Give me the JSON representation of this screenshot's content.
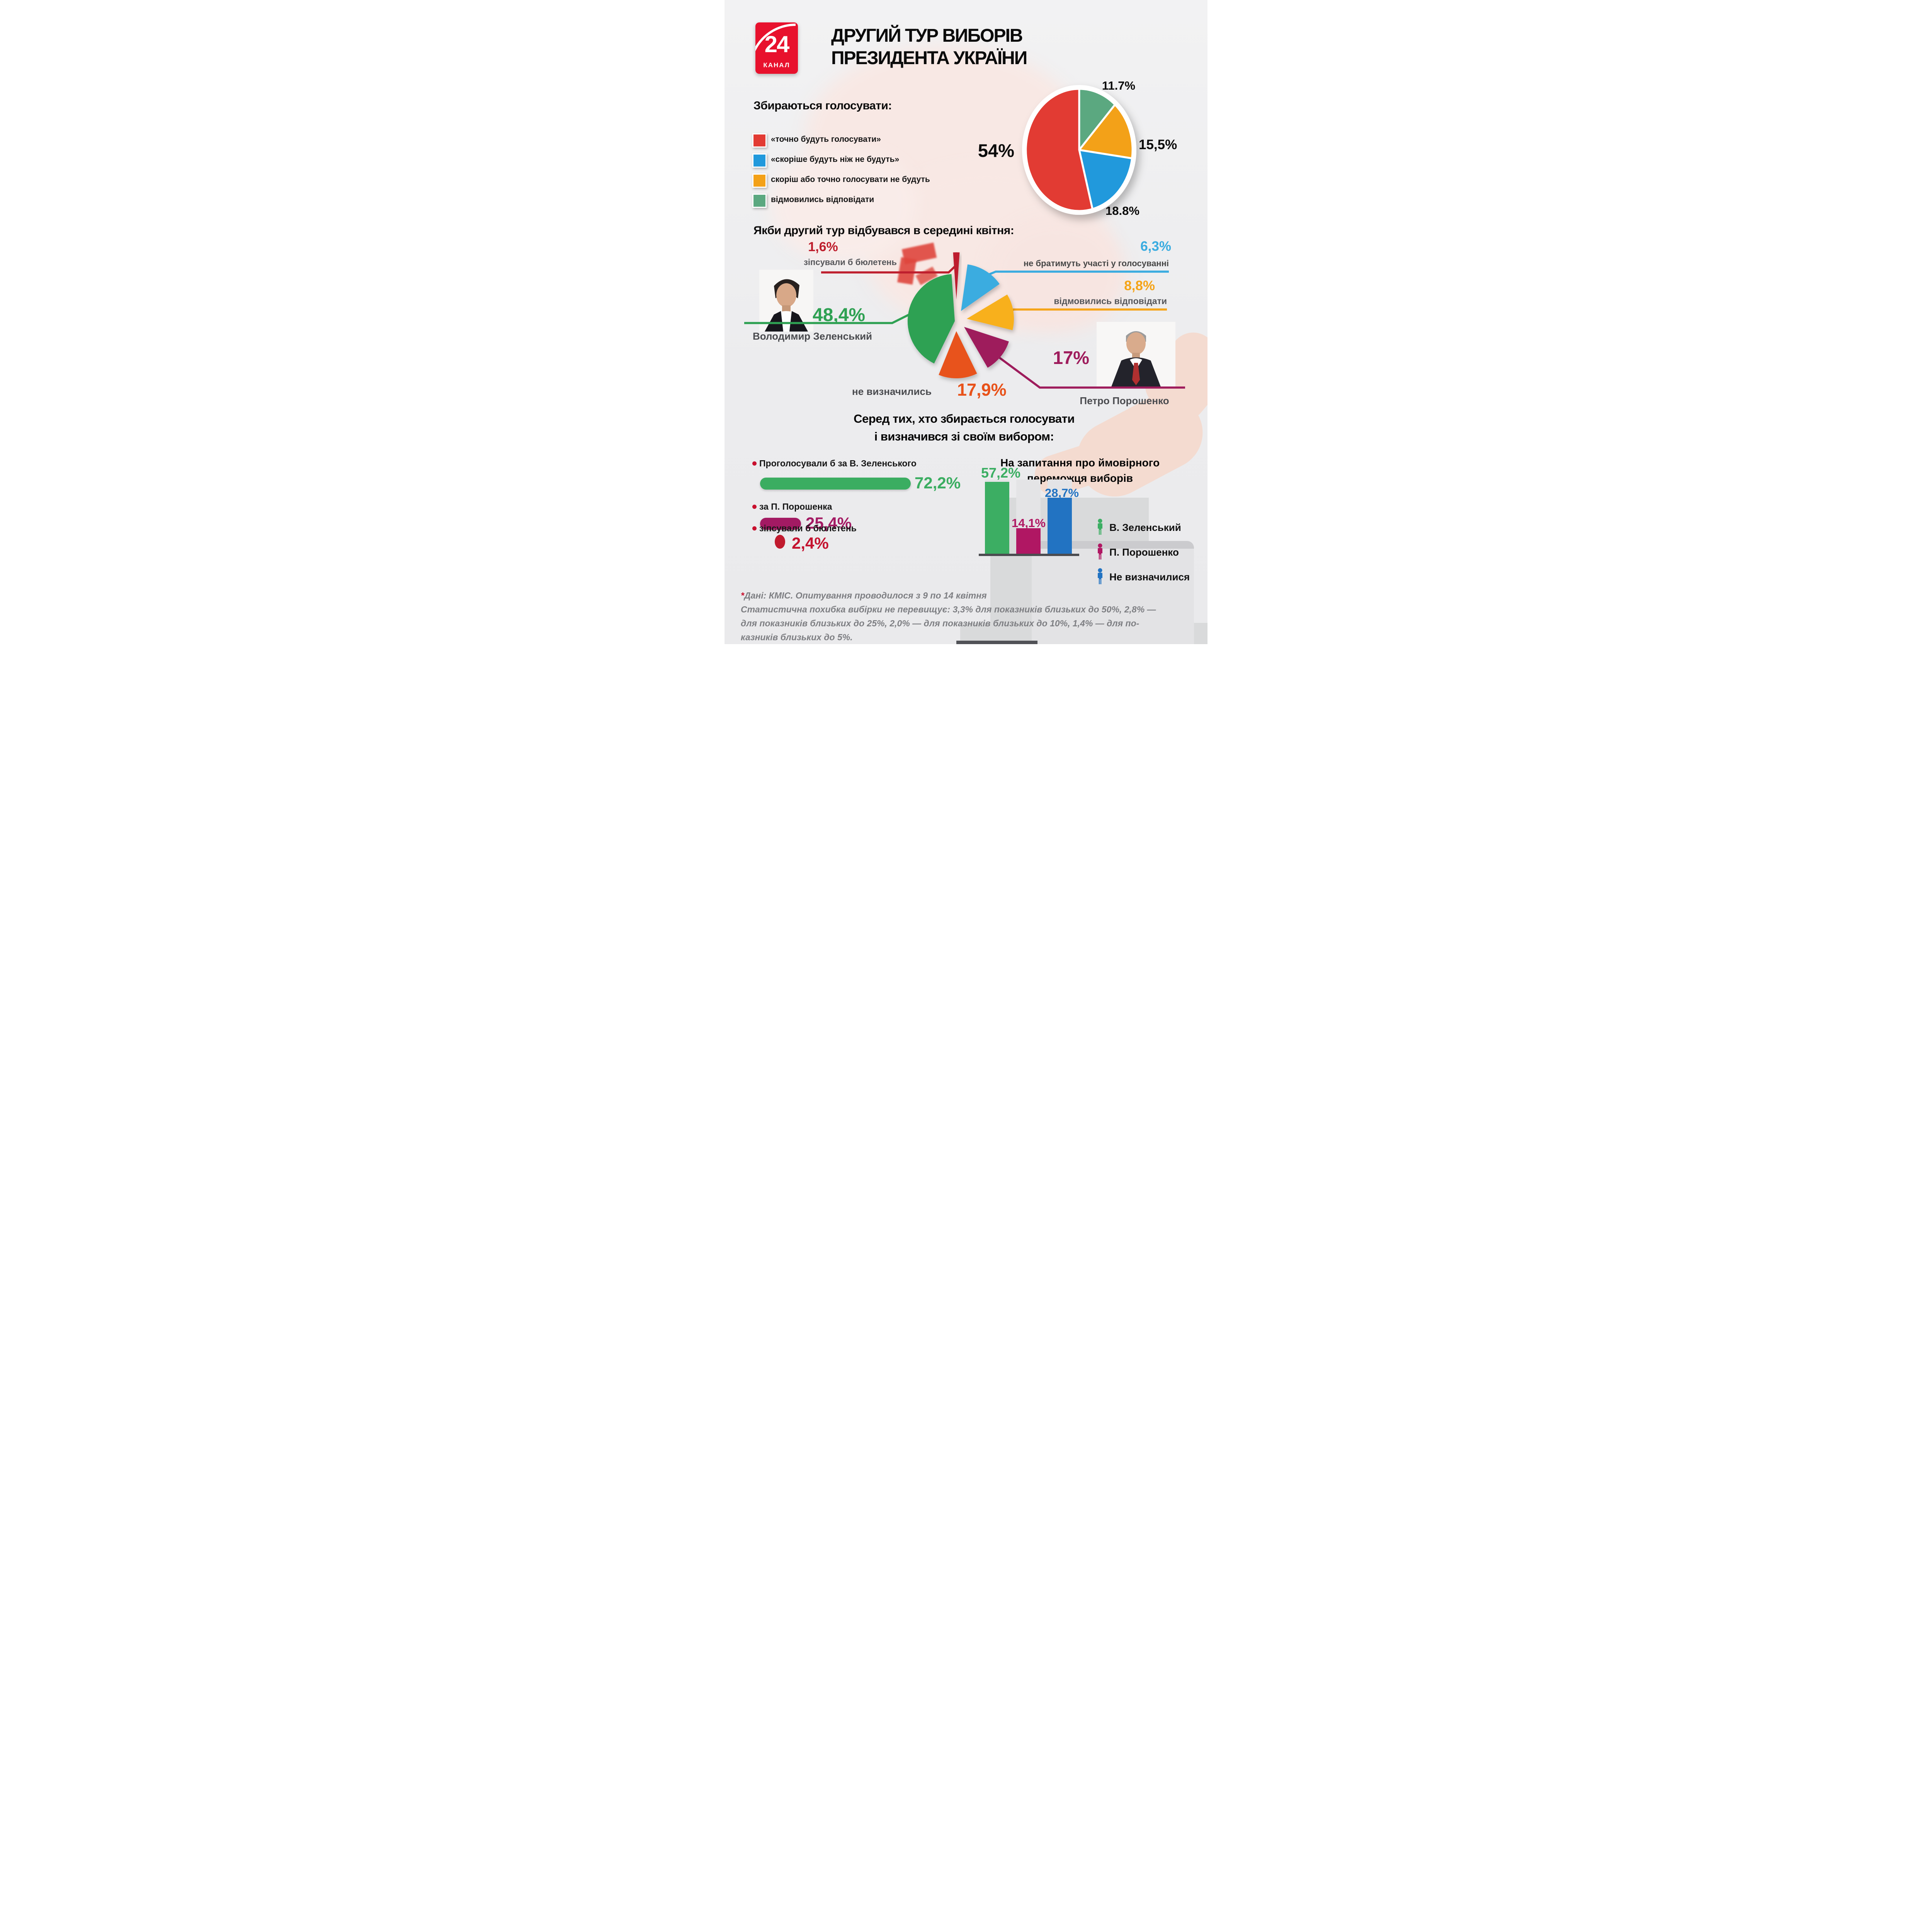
{
  "brand": {
    "channel_number": "24",
    "channel_name": "КАНАЛ"
  },
  "title": {
    "line1": "ДРУГИЙ ТУР ВИБОРІВ",
    "line2": "ПРЕЗИДЕНТА УКРАЇНИ"
  },
  "intent": {
    "heading": "Збираються голосувати:",
    "legend": [
      {
        "label": "«точно будуть голосувати»",
        "color": "#E23B33"
      },
      {
        "label": "«скоріше будуть ніж не будуть»",
        "color": "#2199DC"
      },
      {
        "label": "скоріш або точно голосувати не будуть",
        "color": "#F3A118"
      },
      {
        "label": "відмовились відповідати",
        "color": "#5BA880"
      }
    ],
    "pie_labels": {
      "red": "54%",
      "blue": "18.8%",
      "orange": "15,5%",
      "green": "11.7%"
    }
  },
  "runoff": {
    "heading": "Якби другий тур відбувався в середині квітня:",
    "spoil": {
      "value": "1,6%",
      "label": "зіпсували б бюлетень"
    },
    "abstain": {
      "value": "6,3%",
      "label": "не братимуть участі у голосуванні"
    },
    "refused": {
      "value": "8,8%",
      "label": "відмовились відповідати"
    },
    "zelensky": {
      "value": "48,4%",
      "label": "Володимир Зеленський"
    },
    "poroshenko": {
      "value": "17%",
      "label": "Петро Порошенко"
    },
    "undecided": {
      "value": "17,9%",
      "label": "не визначились"
    }
  },
  "decided": {
    "heading_line1": "Серед тих, хто збирається голосувати",
    "heading_line2": "і визначився зі своїм вибором:",
    "items": [
      {
        "label": "Проголосували б за В. Зеленського",
        "value": "72,2%"
      },
      {
        "label": "за П. Порошенка",
        "value": "25,4%"
      },
      {
        "label": "зіпсували б бюлетень",
        "value": "2,4%"
      }
    ],
    "question": {
      "heading_line1": "На запитання про ймовірного",
      "heading_line2": "переможця виборів",
      "bars": [
        {
          "label": "В. Зеленський",
          "value": "57,2%"
        },
        {
          "label": "П. Порошенко",
          "value": "14,1%"
        },
        {
          "label": "Не визначилися",
          "value": "28,7%"
        }
      ]
    }
  },
  "footnote": {
    "marker": "*",
    "line1": "Дані: КМІС. Опитування проводилося з 9 по 14 квітня",
    "line2": "Статистична похибка вибірки не перевищує: 3,3% для показників близьких до 50%, 2,8% —",
    "line3": "для показників близьких до 25%, 2,0% — для показників близьких до 10%, 1,4% — для по-",
    "line4": "казників близьких до 5%."
  },
  "chart_data": [
    {
      "type": "pie",
      "title": "Збираються голосувати",
      "labels": [
        "«точно будуть голосувати»",
        "«скоріше будуть ніж не будуть»",
        "скоріш або точно голосувати не будуть",
        "відмовились відповідати"
      ],
      "values": [
        54,
        18.8,
        15.5,
        11.7
      ],
      "value_labels": [
        "54%",
        "18.8%",
        "15,5%",
        "11.7%"
      ],
      "colors": [
        "#E23B33",
        "#2199DC",
        "#F3A118",
        "#5BA880"
      ],
      "legend_position": "left"
    },
    {
      "type": "pie",
      "title": "Якби другий тур відбувався в середині квітня",
      "labels": [
        "Володимир Зеленський",
        "не визначились",
        "Петро Порошенко",
        "відмовились відповідати",
        "не братимуть участі у голосуванні",
        "зіпсували б бюлетень"
      ],
      "values": [
        48.4,
        17.9,
        17,
        8.8,
        6.3,
        1.6
      ],
      "value_labels": [
        "48,4%",
        "17,9%",
        "17%",
        "8,8%",
        "6,3%",
        "1,6%"
      ],
      "colors": [
        "#2FA153",
        "#E8521A",
        "#9E1C5C",
        "#F8B01A",
        "#3AACE0",
        "#BE1E2D"
      ],
      "style": "exploded"
    },
    {
      "type": "bar",
      "title": "Серед тих, хто збирається голосувати і визначився зі своїм вибором",
      "categories": [
        "Проголосували б за В. Зеленського",
        "за П. Порошенка",
        "зіпсували б бюлетень"
      ],
      "values": [
        72.2,
        25.4,
        2.4
      ],
      "value_labels": [
        "72,2%",
        "25,4%",
        "2,4%"
      ],
      "colors": [
        "#3BAD61",
        "#A31A63",
        "#C01A2E"
      ],
      "orientation": "horizontal"
    },
    {
      "type": "bar",
      "title": "На запитання про ймовірного переможця виборів",
      "categories": [
        "В. Зеленський",
        "П. Порошенко",
        "Не визначилися"
      ],
      "values": [
        57.2,
        14.1,
        28.7
      ],
      "value_labels": [
        "57,2%",
        "14,1%",
        "28,7%"
      ],
      "colors": [
        "#3CAE63",
        "#B01763",
        "#2273C2"
      ],
      "orientation": "vertical",
      "ylim": [
        0,
        100
      ]
    }
  ]
}
